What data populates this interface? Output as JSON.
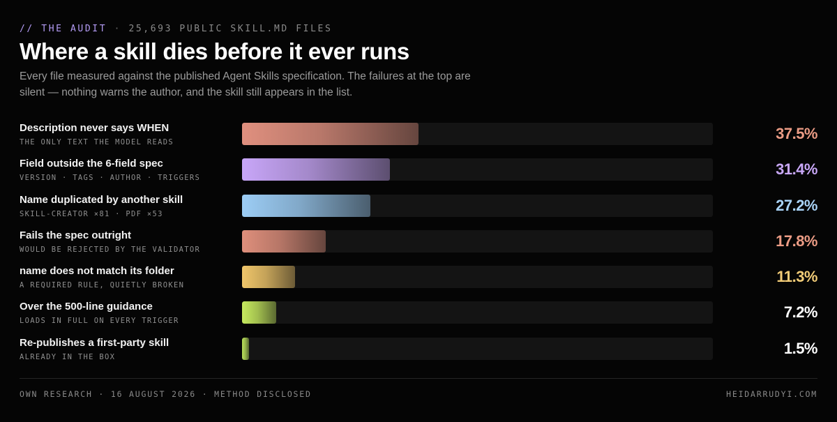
{
  "header": {
    "kicker_accent": "// THE AUDIT",
    "kicker_sep": "·",
    "kicker_rest": "25,693 PUBLIC SKILL.MD FILES",
    "title": "Where a skill dies before it ever runs",
    "subtitle": "Every file measured against the published Agent Skills specification. The failures at the top are silent — nothing warns the author, and the skill still appears in the list."
  },
  "chart_data": {
    "type": "bar",
    "orientation": "horizontal",
    "xlim": [
      0,
      100
    ],
    "grid": false,
    "categories": [
      "Description never says WHEN",
      "Field outside the 6-field spec",
      "Name duplicated by another skill",
      "Fails the spec outright",
      "name does not match its folder",
      "Over the 500-line guidance",
      "Re-publishes a first-party skill"
    ],
    "sublabels": [
      "THE ONLY TEXT THE MODEL READS",
      "VERSION · TAGS · AUTHOR · TRIGGERS",
      "SKILL-CREATOR ×81 · PDF ×53",
      "WOULD BE REJECTED BY THE VALIDATOR",
      "A REQUIRED RULE, QUIETLY BROKEN",
      "LOADS IN FULL ON EVERY TRIGGER",
      "ALREADY IN THE BOX"
    ],
    "values": [
      37.5,
      31.4,
      27.2,
      17.8,
      11.3,
      7.2,
      1.5
    ],
    "value_labels": [
      "37.5%",
      "31.4%",
      "27.2%",
      "17.8%",
      "11.3%",
      "7.2%",
      "1.5%"
    ],
    "colors": [
      "#e0907f",
      "#c8a6f8",
      "#9ccdf5",
      "#df8f7c",
      "#f0c66a",
      "#c6ea5e",
      "#b9e05a"
    ],
    "label_colors": [
      "#ec9c85",
      "#c9a8f8",
      "#a9d3f7",
      "#ec9c85",
      "#f3cd78",
      "#ffffff",
      "#ffffff"
    ]
  },
  "footer": {
    "left": "OWN RESEARCH · 16 AUGUST 2026 · METHOD DISCLOSED",
    "right": "HEIDARRUDYI.COM"
  }
}
